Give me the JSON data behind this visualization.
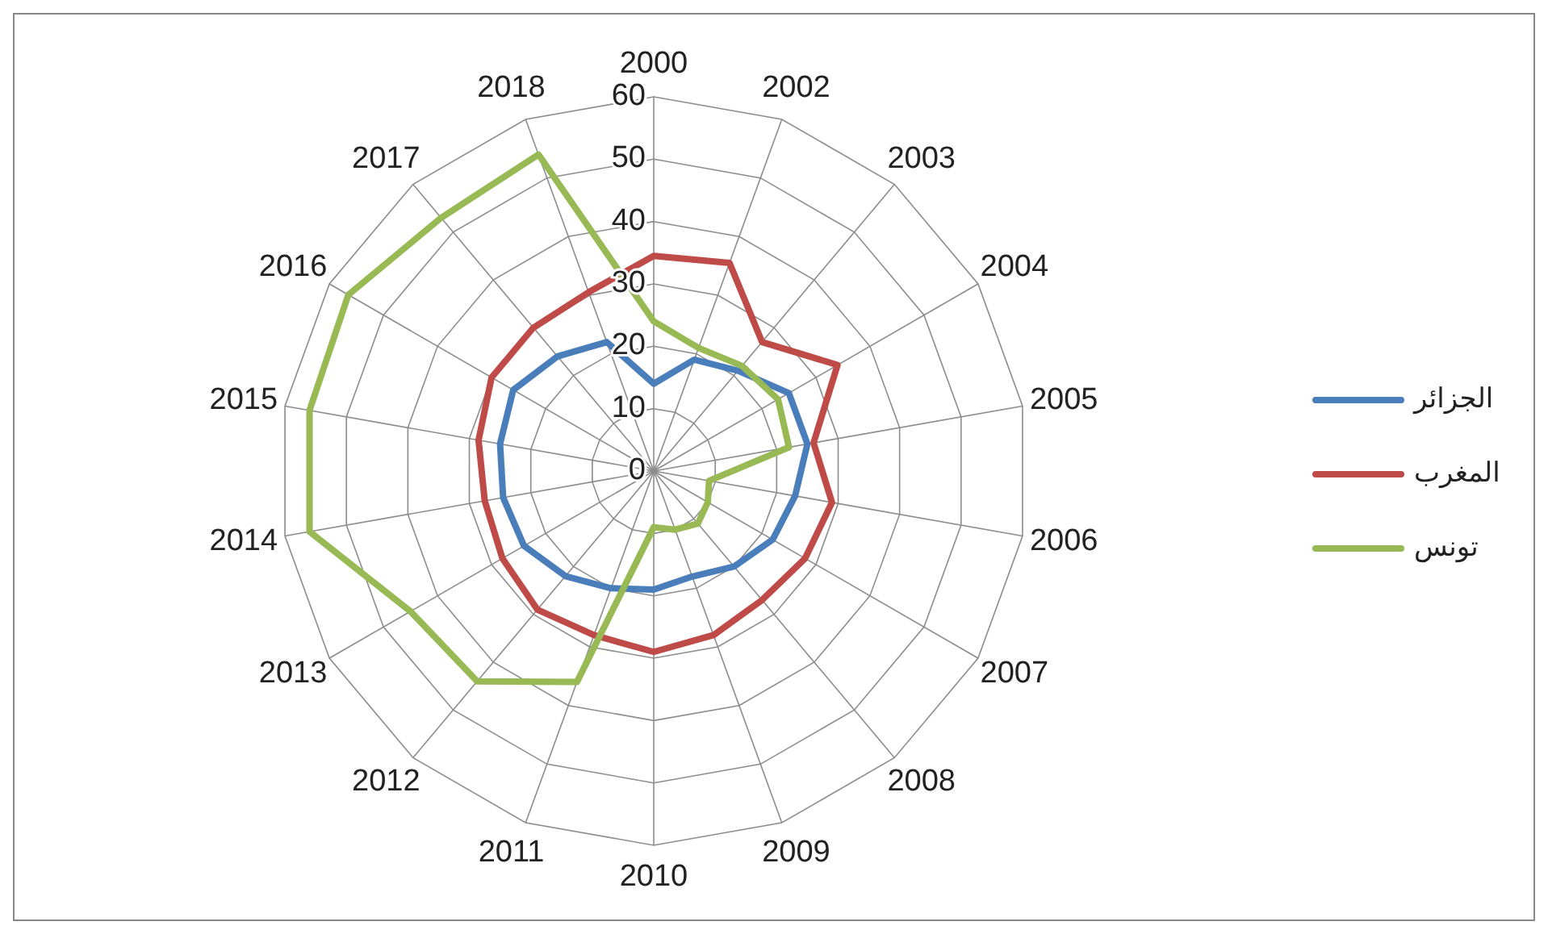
{
  "chart_data": {
    "type": "radar",
    "categories": [
      "2000",
      "2002",
      "2003",
      "2004",
      "2005",
      "2006",
      "2007",
      "2008",
      "2009",
      "2010",
      "2011",
      "2012",
      "2013",
      "2014",
      "2015",
      "2016",
      "2017",
      "2018"
    ],
    "series": [
      {
        "name": "الجزائر",
        "color": "#4a7ebb",
        "values": [
          14,
          19,
          21,
          25,
          25,
          23,
          22,
          20,
          18,
          19,
          20,
          22,
          24,
          24.5,
          25,
          26,
          24,
          22
        ]
      },
      {
        "name": "المغرب",
        "color": "#be4b48",
        "values": [
          34.5,
          35.5,
          27,
          34,
          26,
          29,
          28,
          27,
          28,
          29,
          28,
          29,
          28,
          27.5,
          28.5,
          30,
          30,
          30.5
        ]
      },
      {
        "name": "تونس",
        "color": "#98b954",
        "values": [
          24,
          21,
          22,
          23,
          22,
          9,
          10,
          11,
          10,
          9,
          36,
          44,
          45,
          56,
          56,
          56.5,
          53,
          54
        ]
      }
    ],
    "ylim": [
      0,
      60
    ],
    "yticks": [
      0,
      10,
      20,
      30,
      40,
      50,
      60
    ],
    "grid": true,
    "legend": "right",
    "marker": "none",
    "line_style": "solid"
  }
}
